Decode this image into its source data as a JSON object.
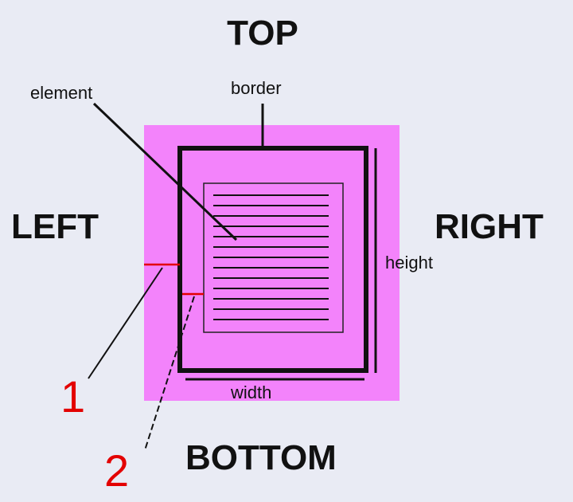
{
  "sides": {
    "top": "TOP",
    "left": "LEFT",
    "right": "RIGHT",
    "bottom": "BOTTOM"
  },
  "labels": {
    "element": "element",
    "border": "border",
    "height": "height",
    "width": "width"
  },
  "callouts": {
    "one": "1",
    "two": "2"
  },
  "colors": {
    "background": "#e9ebf4",
    "margin_fill": "#f383fb",
    "line": "#111111",
    "callout": "#e30000"
  }
}
